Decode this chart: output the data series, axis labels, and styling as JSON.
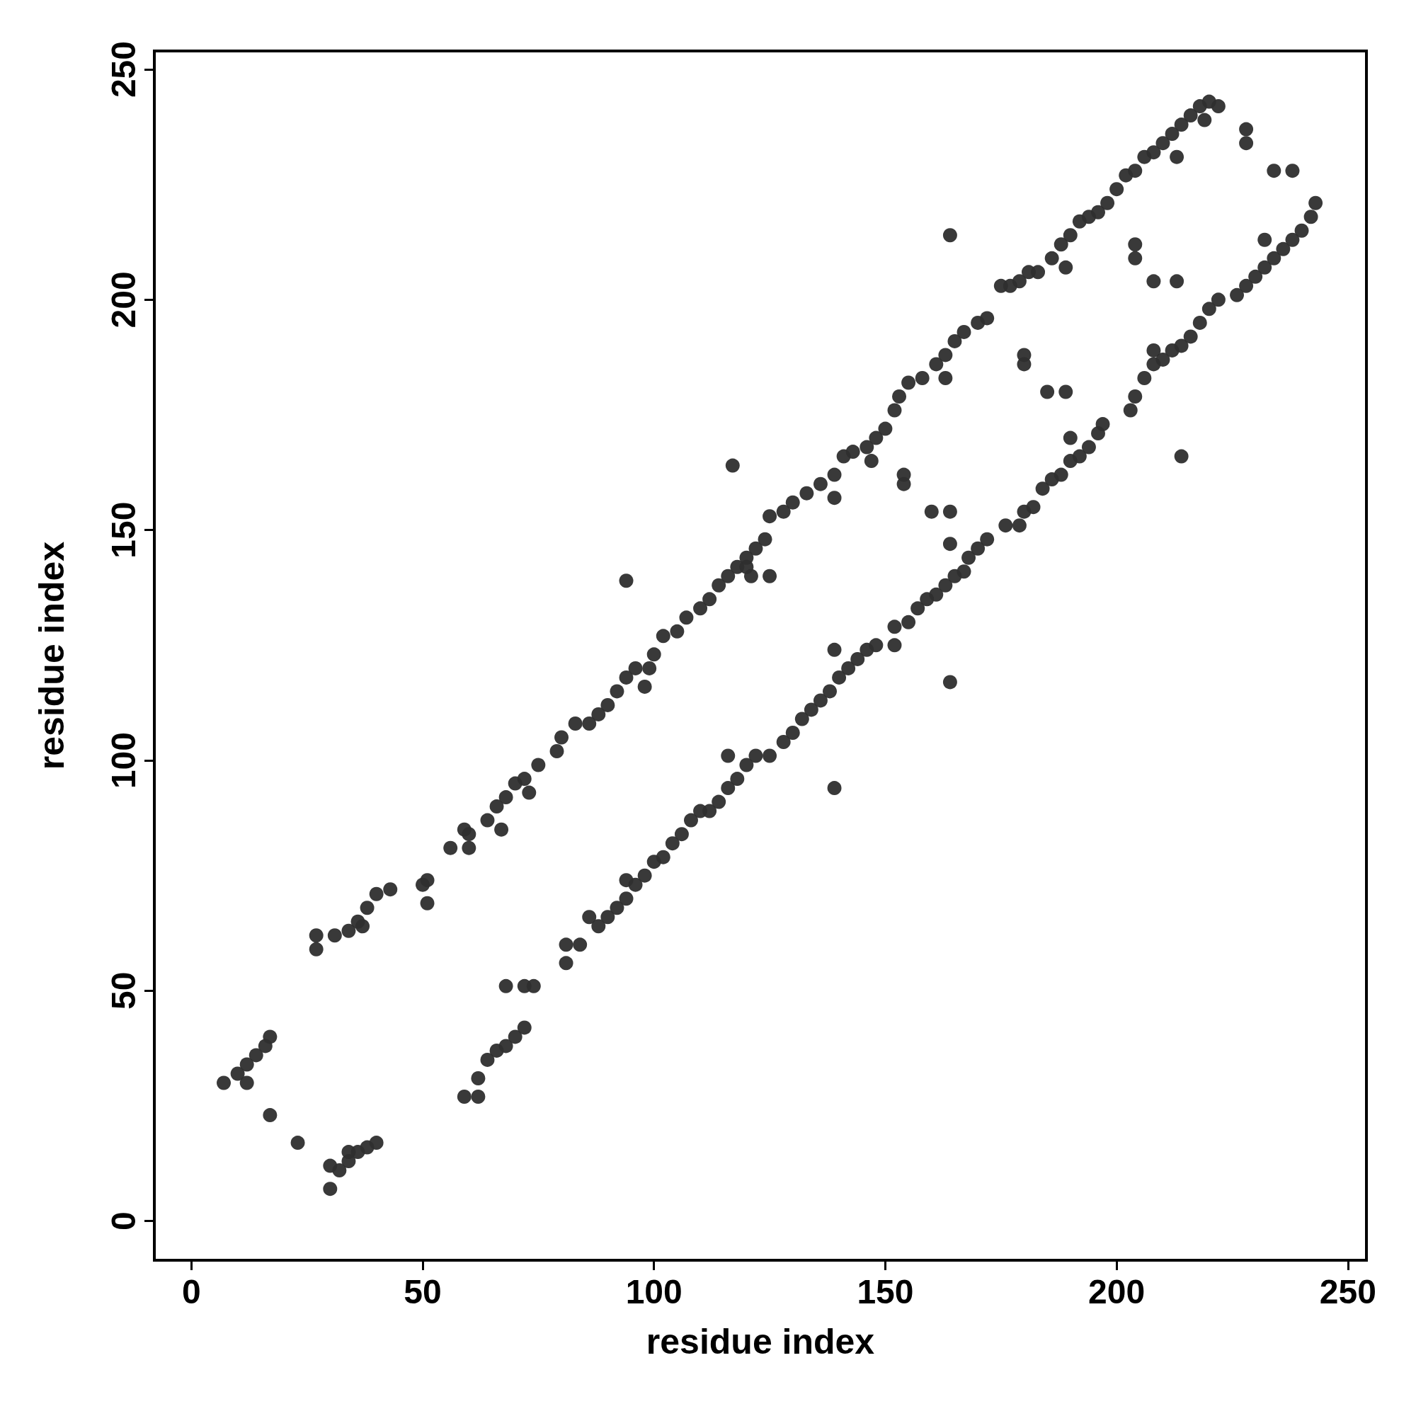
{
  "chart_data": {
    "type": "scatter",
    "xlabel": "residue index",
    "ylabel": "residue index",
    "xlim": [
      -8,
      254
    ],
    "ylim": [
      -8.5,
      254
    ],
    "xticks": [
      0,
      50,
      100,
      150,
      200,
      250
    ],
    "yticks": [
      0,
      50,
      100,
      150,
      200,
      250
    ],
    "grid": false,
    "marker": "circle",
    "series": [
      {
        "color": "#2e2e2e",
        "x": [
          7,
          10,
          12,
          14,
          16,
          17,
          12,
          17,
          23,
          30,
          30,
          32,
          34,
          36,
          38,
          40,
          34,
          27,
          27,
          31,
          34,
          36,
          38,
          40,
          43,
          37,
          51,
          51,
          50,
          56,
          59,
          60,
          60,
          64,
          66,
          68,
          70,
          72,
          75,
          73,
          67,
          79,
          80,
          83,
          86,
          88,
          90,
          92,
          94,
          96,
          99,
          98,
          100,
          102,
          105,
          107,
          110,
          112,
          114,
          116,
          118,
          120,
          122,
          124,
          121,
          125,
          128,
          130,
          133,
          136,
          139,
          141,
          143,
          146,
          148,
          150,
          152,
          153,
          155,
          158,
          161,
          163,
          165,
          167,
          170,
          172,
          175,
          177,
          179,
          181,
          183,
          186,
          188,
          190,
          192,
          194,
          196,
          198,
          200,
          202,
          204,
          206,
          208,
          210,
          212,
          214,
          216,
          218,
          220,
          222,
          219,
          94,
          117,
          164,
          139,
          120,
          125,
          147,
          154,
          154,
          163,
          180,
          180,
          185,
          189,
          204,
          204,
          208,
          213,
          228,
          228,
          234,
          238,
          213,
          189,
          59,
          62,
          62,
          64,
          66,
          68,
          70,
          72,
          72,
          68,
          74,
          81,
          81,
          84,
          86,
          88,
          90,
          92,
          94,
          96,
          98,
          100,
          102,
          104,
          106,
          108,
          110,
          112,
          114,
          116,
          118,
          120,
          122,
          116,
          125,
          128,
          130,
          132,
          134,
          136,
          138,
          140,
          142,
          144,
          146,
          148,
          152,
          152,
          155,
          157,
          159,
          161,
          163,
          165,
          167,
          168,
          170,
          172,
          176,
          179,
          180,
          182,
          184,
          186,
          188,
          190,
          192,
          194,
          196,
          197,
          203,
          204,
          206,
          208,
          210,
          212,
          214,
          216,
          218,
          220,
          222,
          226,
          228,
          230,
          232,
          234,
          236,
          238,
          240,
          242,
          243,
          164,
          139,
          214,
          160,
          164,
          164,
          139,
          94,
          208,
          232,
          190
        ],
        "values": [
          30,
          32,
          34,
          36,
          38,
          40,
          30,
          23,
          17,
          7,
          12,
          11,
          13,
          15,
          16,
          17,
          15,
          62,
          59,
          62,
          63,
          65,
          68,
          71,
          72,
          64,
          74,
          69,
          73,
          81,
          85,
          81,
          84,
          87,
          90,
          92,
          95,
          96,
          99,
          93,
          85,
          102,
          105,
          108,
          108,
          110,
          112,
          115,
          118,
          120,
          120,
          116,
          123,
          127,
          128,
          131,
          133,
          135,
          138,
          140,
          142,
          144,
          146,
          148,
          140,
          153,
          154,
          156,
          158,
          160,
          162,
          166,
          167,
          168,
          170,
          172,
          176,
          179,
          182,
          183,
          186,
          188,
          191,
          193,
          195,
          196,
          203,
          203,
          204,
          206,
          206,
          209,
          212,
          214,
          217,
          218,
          219,
          221,
          224,
          227,
          228,
          231,
          232,
          234,
          236,
          238,
          240,
          242,
          243,
          242,
          239,
          139,
          164,
          214,
          157,
          142,
          140,
          165,
          162,
          160,
          183,
          188,
          186,
          180,
          180,
          212,
          209,
          204,
          204,
          237,
          234,
          228,
          228,
          231,
          207,
          27,
          27,
          31,
          35,
          37,
          38,
          40,
          42,
          51,
          51,
          51,
          56,
          60,
          60,
          66,
          64,
          66,
          68,
          70,
          73,
          75,
          78,
          79,
          82,
          84,
          87,
          89,
          89,
          91,
          94,
          96,
          99,
          101,
          101,
          101,
          104,
          106,
          109,
          111,
          113,
          115,
          118,
          120,
          122,
          124,
          125,
          125,
          129,
          130,
          133,
          135,
          136,
          138,
          140,
          141,
          144,
          146,
          148,
          151,
          151,
          154,
          155,
          159,
          161,
          162,
          165,
          166,
          168,
          171,
          173,
          176,
          179,
          183,
          186,
          187,
          189,
          190,
          192,
          195,
          198,
          200,
          201,
          203,
          205,
          207,
          209,
          211,
          213,
          215,
          218,
          221,
          117,
          94,
          166,
          154,
          154,
          147,
          124,
          74,
          189,
          213,
          170
        ]
      }
    ]
  }
}
